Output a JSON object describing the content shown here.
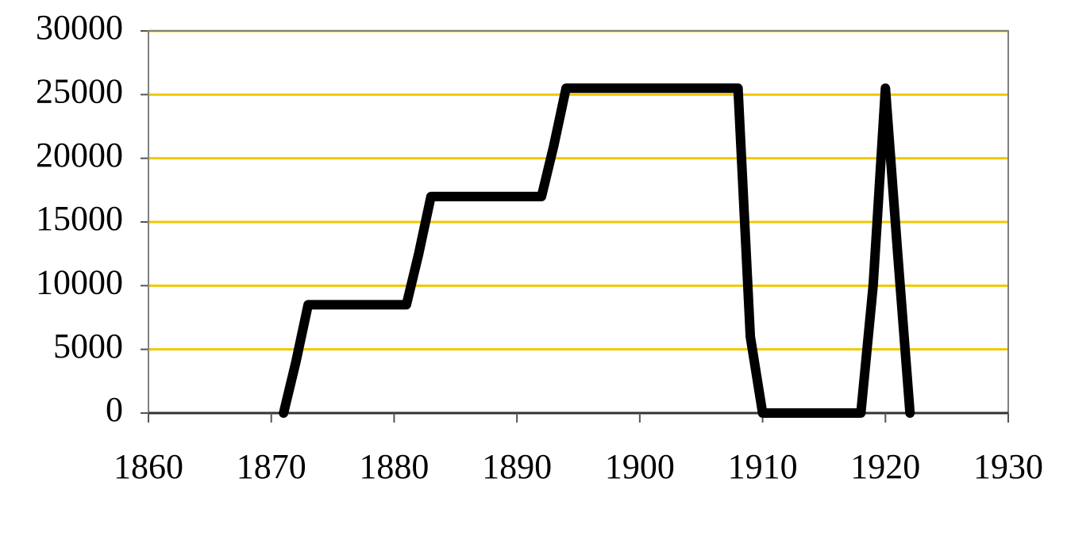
{
  "chart_data": {
    "type": "line",
    "x": [
      1871,
      1872,
      1873,
      1881,
      1882,
      1883,
      1892,
      1893,
      1894,
      1908,
      1909,
      1910,
      1918,
      1919,
      1920,
      1921,
      1922
    ],
    "values": [
      0,
      4000,
      8500,
      8500,
      12500,
      17000,
      17000,
      21000,
      25500,
      25500,
      6000,
      0,
      0,
      10000,
      25500,
      12500,
      0
    ],
    "color": "#000000",
    "grid_color": "#f0c800",
    "xlim": [
      1860,
      1930
    ],
    "xticks": [
      1860,
      1870,
      1880,
      1890,
      1900,
      1910,
      1920,
      1930
    ],
    "ylim": [
      0,
      30000
    ],
    "yticks": [
      0,
      5000,
      10000,
      15000,
      20000,
      25000,
      30000
    ],
    "grid": true
  }
}
